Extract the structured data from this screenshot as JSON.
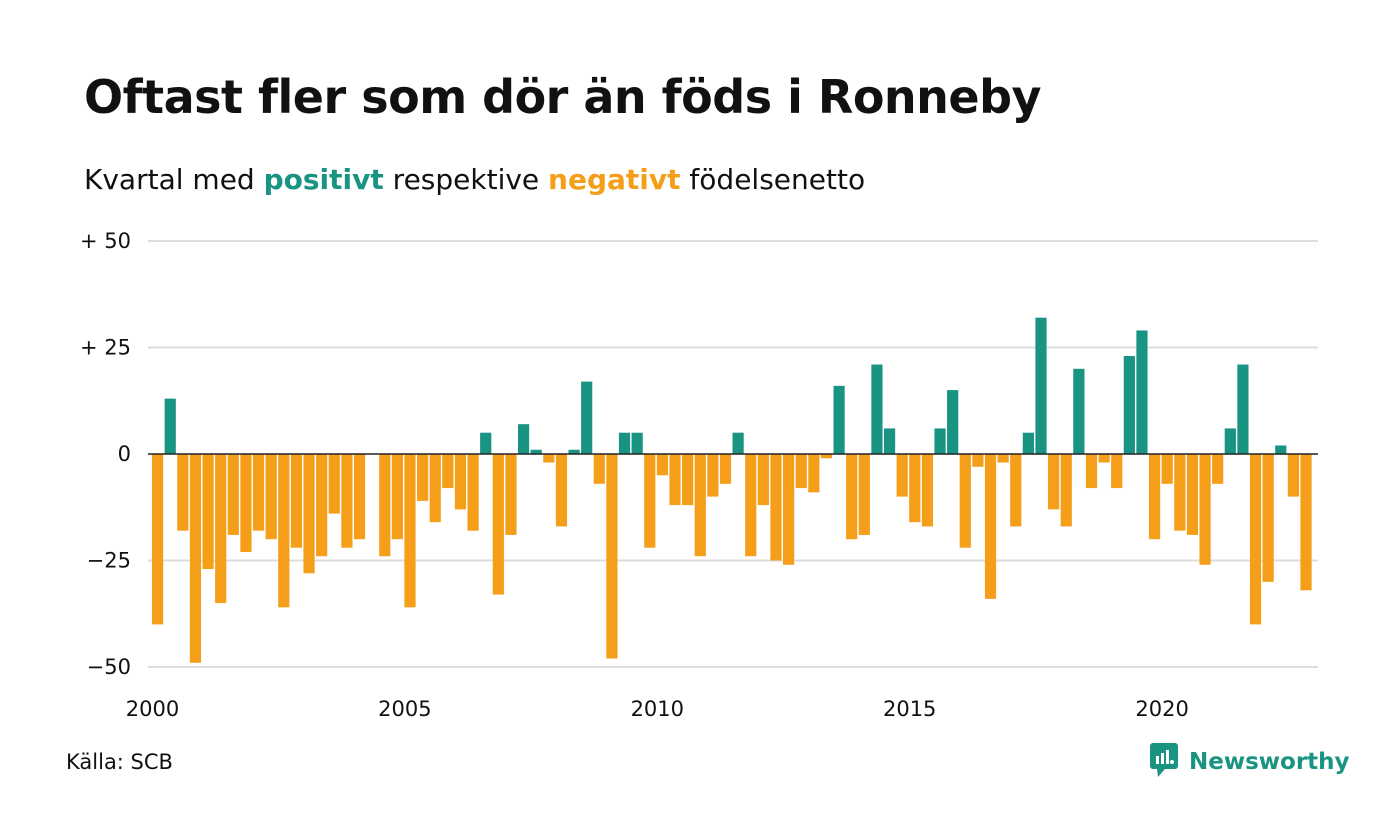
{
  "title": "Oftast fler som dör än föds i Ronneby",
  "subtitle": {
    "prefix": "Kvartal med ",
    "positive_word": "positivt",
    "middle": " respektive ",
    "negative_word": "negativt",
    "suffix": " födelsenetto"
  },
  "source": "Källa: SCB",
  "brand": {
    "name": "Newsworthy",
    "icon": "newsworthy-logo-icon"
  },
  "colors": {
    "positive": "#1a9482",
    "negative": "#f59e1a",
    "grid": "#dddddd",
    "text": "#111111"
  },
  "chart_data": {
    "type": "bar",
    "x_start": 2000,
    "period": "quarter",
    "xticks": [
      2000,
      2005,
      2010,
      2015,
      2020
    ],
    "xtick_labels": [
      "2000",
      "2005",
      "2010",
      "2015",
      "2020"
    ],
    "yticks": [
      50,
      25,
      0,
      -25,
      -50
    ],
    "ytick_labels": [
      "+ 50",
      "+ 25",
      "0",
      "−25",
      "−50"
    ],
    "ylim": [
      -50,
      50
    ],
    "grid": true,
    "values": [
      -40,
      13,
      -18,
      -49,
      -27,
      -35,
      -19,
      -23,
      -18,
      -20,
      -36,
      -22,
      -28,
      -24,
      -14,
      -22,
      -20,
      0,
      -24,
      -20,
      -36,
      -11,
      -16,
      -8,
      -13,
      -18,
      5,
      -33,
      -19,
      7,
      1,
      -2,
      -17,
      1,
      17,
      -7,
      -48,
      5,
      5,
      -22,
      -5,
      -12,
      -12,
      -24,
      -10,
      -7,
      5,
      -24,
      -12,
      -25,
      -26,
      -8,
      -9,
      -1,
      16,
      -20,
      -19,
      21,
      6,
      -10,
      -16,
      -17,
      6,
      15,
      -22,
      -3,
      -34,
      -2,
      -17,
      5,
      32,
      -13,
      -17,
      20,
      -8,
      -2,
      -8,
      23,
      29,
      -20,
      -7,
      -18,
      -19,
      -26,
      -7,
      6,
      21,
      -40,
      -30,
      2,
      -10,
      -32
    ]
  }
}
